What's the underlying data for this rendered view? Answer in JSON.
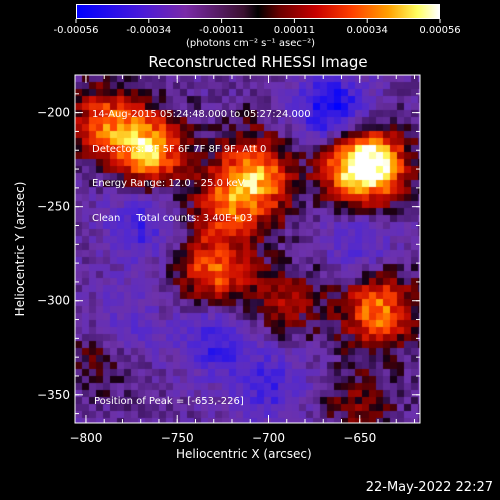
{
  "colorbar": {
    "tick_labels": [
      "-0.00056",
      "-0.00034",
      "-0.00011",
      "0.00011",
      "0.00034",
      "0.00056"
    ],
    "unit_label": "(photons cm⁻² s⁻¹ asec⁻²)",
    "range": [
      -0.00056,
      0.00056
    ]
  },
  "chart_data": {
    "type": "heatmap",
    "title": "Reconstructed RHESSI Image",
    "xlabel": "Heliocentric X (arcsec)",
    "ylabel": "Heliocentric Y (arcsec)",
    "xlim": [
      -806,
      -617
    ],
    "ylim": [
      -365,
      -180
    ],
    "x_ticks": [
      -800,
      -750,
      -700,
      -650
    ],
    "y_ticks": [
      -200,
      -250,
      -300,
      -350
    ],
    "colormap": "blue-purple-red-yellow-white",
    "hotspots": [
      {
        "x": -765,
        "y": -220,
        "value": 0.00056
      },
      {
        "x": -790,
        "y": -205,
        "value": 0.0004
      },
      {
        "x": -725,
        "y": -250,
        "value": 0.0003
      },
      {
        "x": -710,
        "y": -225,
        "value": 0.00025
      },
      {
        "x": -705,
        "y": -240,
        "value": 0.00035
      },
      {
        "x": -653,
        "y": -226,
        "value": 0.00056
      },
      {
        "x": -640,
        "y": -230,
        "value": 0.0004
      },
      {
        "x": -730,
        "y": -285,
        "value": 0.00045
      },
      {
        "x": -640,
        "y": -305,
        "value": 0.0005
      },
      {
        "x": -690,
        "y": -300,
        "value": 0.00025
      },
      {
        "x": -790,
        "y": -330,
        "value": 0.0002
      },
      {
        "x": -650,
        "y": -355,
        "value": 0.0002
      }
    ],
    "coldspots": [
      {
        "x": -665,
        "y": -200,
        "value": -0.00045
      },
      {
        "x": -770,
        "y": -260,
        "value": -0.00025
      },
      {
        "x": -730,
        "y": -320,
        "value": -0.0003
      },
      {
        "x": -780,
        "y": -315,
        "value": -0.0002
      },
      {
        "x": -700,
        "y": -345,
        "value": -0.00025
      },
      {
        "x": -650,
        "y": -270,
        "value": -0.0002
      }
    ]
  },
  "info_lines": [
    "14-Aug-2015 05:24:48.000 to 05:27:24.000",
    "Detectors: 3F 5F 6F 7F 8F 9F, Att 0",
    "Energy Range: 12.0 - 25.0 keV",
    "Clean     Total counts: 3.40E+03"
  ],
  "peak_label": "Position of Peak = [-653,-226]",
  "timestamp": "22-May-2022 22:27"
}
